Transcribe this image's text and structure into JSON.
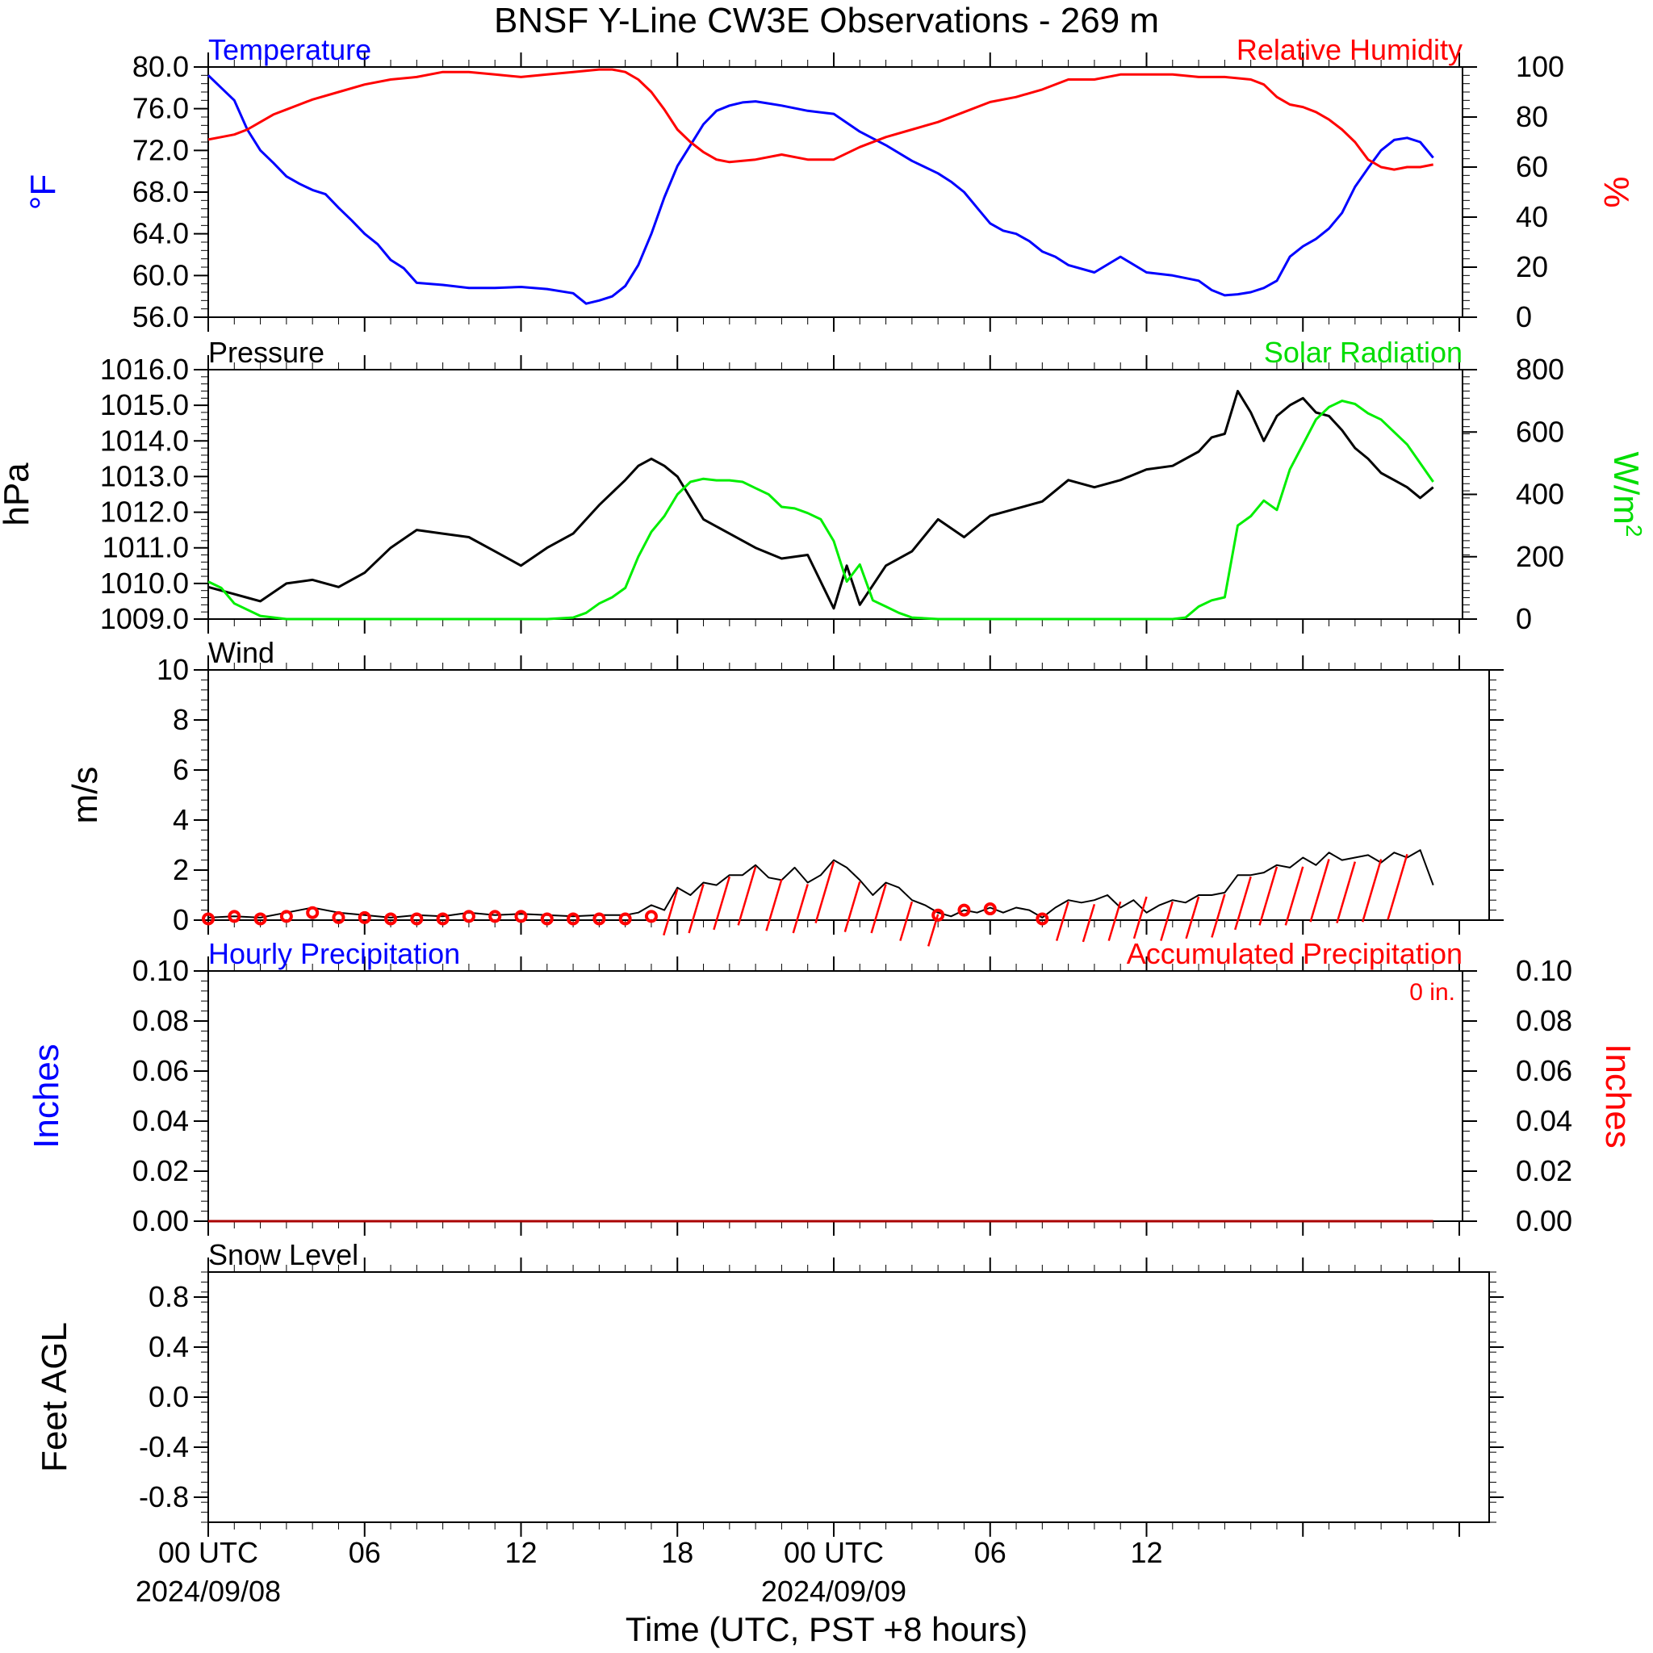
{
  "title": "BNSF Y-Line CW3E Observations - 269 m",
  "x_axis": {
    "label": "Time (UTC, PST +8 hours)",
    "range_hours": [
      0,
      48
    ],
    "ticks": [
      {
        "hour": 0,
        "label": "00 UTC",
        "sublabel": "2024/09/08"
      },
      {
        "hour": 6,
        "label": "06",
        "sublabel": ""
      },
      {
        "hour": 12,
        "label": "12",
        "sublabel": ""
      },
      {
        "hour": 18,
        "label": "18",
        "sublabel": ""
      },
      {
        "hour": 24,
        "label": "00 UTC",
        "sublabel": "2024/09/09"
      },
      {
        "hour": 30,
        "label": "06",
        "sublabel": ""
      },
      {
        "hour": 36,
        "label": "12",
        "sublabel": ""
      }
    ]
  },
  "chart_data": [
    {
      "type": "line",
      "panel": "temperature-humidity",
      "title_left": "Temperature",
      "title_right": "Relative Humidity",
      "ylabel_left": "°F",
      "ylabel_right": "%",
      "ylim_left": [
        56,
        80
      ],
      "ylim_right": [
        0,
        100
      ],
      "yticks_left": [
        "56.0",
        "60.0",
        "64.0",
        "68.0",
        "72.0",
        "76.0",
        "80.0"
      ],
      "yticks_right": [
        "0",
        "20",
        "40",
        "60",
        "80",
        "100"
      ],
      "colors": {
        "temperature": "#0000ff",
        "humidity": "#ff0000"
      },
      "series": [
        {
          "name": "Temperature",
          "axis": "left",
          "x": [
            0,
            0.5,
            1,
            1.5,
            2,
            2.5,
            3,
            3.5,
            4,
            4.5,
            5,
            5.5,
            6,
            6.5,
            7,
            7.5,
            8,
            9,
            10,
            11,
            12,
            13,
            14,
            14.5,
            15,
            15.5,
            16,
            16.5,
            17,
            17.5,
            18,
            18.5,
            19,
            19.5,
            20,
            20.5,
            21,
            22,
            23,
            24,
            25,
            26,
            27,
            28,
            28.5,
            29,
            29.5,
            30,
            30.5,
            31,
            31.5,
            32,
            32.5,
            33,
            34,
            35,
            36,
            37,
            38,
            38.5,
            39,
            39.5,
            40,
            40.5,
            41,
            41.5,
            42,
            42.5,
            43,
            43.5,
            44,
            44.5,
            45,
            45.5,
            46,
            46.5,
            47
          ],
          "y": [
            79.2,
            78,
            76.8,
            74,
            72,
            70.8,
            69.5,
            68.8,
            68.2,
            67.8,
            66.5,
            65.3,
            64,
            63,
            61.5,
            60.7,
            59.3,
            59.1,
            58.8,
            58.8,
            58.9,
            58.7,
            58.3,
            57.3,
            57.6,
            58,
            59,
            61,
            64,
            67.5,
            70.5,
            72.5,
            74.5,
            75.8,
            76.3,
            76.6,
            76.7,
            76.3,
            75.8,
            75.5,
            73.8,
            72.5,
            71,
            69.8,
            69,
            68,
            66.5,
            65,
            64.3,
            64,
            63.3,
            62.3,
            61.8,
            61,
            60.3,
            61.8,
            60.3,
            60,
            59.5,
            58.6,
            58.1,
            58.2,
            58.4,
            58.8,
            59.5,
            61.8,
            62.8,
            63.5,
            64.5,
            66,
            68.5,
            70.3,
            72,
            73,
            73.2,
            72.8,
            71.3
          ]
        },
        {
          "name": "Relative Humidity",
          "axis": "right",
          "x": [
            0,
            0.5,
            1,
            1.5,
            2,
            2.5,
            3,
            3.5,
            4,
            5,
            6,
            7,
            8,
            9,
            10,
            11,
            12,
            13,
            14,
            15,
            15.5,
            16,
            16.5,
            17,
            17.5,
            18,
            18.5,
            19,
            19.5,
            20,
            21,
            22,
            23,
            24,
            25,
            26,
            27,
            28,
            29,
            30,
            31,
            32,
            33,
            34,
            35,
            36,
            37,
            38,
            39,
            40,
            40.5,
            41,
            41.5,
            42,
            42.5,
            43,
            43.5,
            44,
            44.5,
            45,
            45.5,
            46,
            46.5,
            47
          ],
          "y": [
            71,
            72,
            73,
            75,
            78,
            81,
            83,
            85,
            87,
            90,
            93,
            95,
            96,
            98,
            98,
            97,
            96,
            97,
            98,
            99,
            99,
            98,
            95,
            90,
            83,
            75,
            70,
            66,
            63,
            62,
            63,
            65,
            63,
            63,
            68,
            72,
            75,
            78,
            82,
            86,
            88,
            91,
            95,
            95,
            97,
            97,
            97,
            96,
            96,
            95,
            93,
            88,
            85,
            84,
            82,
            79,
            75,
            70,
            63,
            60,
            59,
            60,
            60,
            61
          ]
        }
      ]
    },
    {
      "type": "line",
      "panel": "pressure-solar",
      "title_left": "Pressure",
      "title_right": "Solar Radiation",
      "ylabel_left": "hPa",
      "ylabel_right": "W/m",
      "ylabel_right_sup": "2",
      "ylim_left": [
        1009,
        1016
      ],
      "ylim_right": [
        0,
        800
      ],
      "yticks_left": [
        "1009.0",
        "1010.0",
        "1011.0",
        "1012.0",
        "1013.0",
        "1014.0",
        "1015.0",
        "1016.0"
      ],
      "yticks_right": [
        "0",
        "200",
        "400",
        "600",
        "800"
      ],
      "colors": {
        "pressure": "#000000",
        "solar": "#00ee00"
      },
      "series": [
        {
          "name": "Pressure",
          "axis": "left",
          "x": [
            0,
            0.5,
            1,
            1.5,
            2,
            3,
            4,
            5,
            6,
            7,
            8,
            9,
            10,
            11,
            12,
            13,
            14,
            15,
            16,
            16.5,
            17,
            17.5,
            18,
            19,
            20,
            21,
            22,
            23,
            24,
            24.5,
            25,
            26,
            27,
            28,
            29,
            30,
            31,
            32,
            33,
            34,
            35,
            36,
            37,
            38,
            38.5,
            39,
            39.5,
            40,
            40.5,
            41,
            41.5,
            42,
            42.5,
            43,
            43.5,
            44,
            44.5,
            45,
            45.5,
            46,
            46.5,
            47
          ],
          "y": [
            1009.9,
            1009.8,
            1009.7,
            1009.6,
            1009.5,
            1010,
            1010.1,
            1009.9,
            1010.3,
            1011,
            1011.5,
            1011.4,
            1011.3,
            1010.9,
            1010.5,
            1011,
            1011.4,
            1012.2,
            1012.9,
            1013.3,
            1013.5,
            1013.3,
            1013,
            1011.8,
            1011.4,
            1011,
            1010.7,
            1010.8,
            1009.3,
            1010.5,
            1009.4,
            1010.5,
            1010.9,
            1011.8,
            1011.3,
            1011.9,
            1012.1,
            1012.3,
            1012.9,
            1012.7,
            1012.9,
            1013.2,
            1013.3,
            1013.7,
            1014.1,
            1014.2,
            1015.4,
            1014.8,
            1014,
            1014.7,
            1015,
            1015.2,
            1014.8,
            1014.7,
            1014.3,
            1013.8,
            1013.5,
            1013.1,
            1012.9,
            1012.7,
            1012.4,
            1012.7
          ]
        },
        {
          "name": "Solar Radiation",
          "axis": "right",
          "x": [
            0,
            0.5,
            1,
            2,
            3,
            4,
            6,
            8,
            10,
            12,
            13,
            14,
            14.5,
            15,
            15.5,
            16,
            16.5,
            17,
            17.5,
            18,
            18.5,
            19,
            19.5,
            20,
            20.5,
            21,
            21.5,
            22,
            22.5,
            23,
            23.5,
            24,
            24.5,
            25,
            25.5,
            26,
            26.5,
            27,
            28,
            30,
            32,
            34,
            36,
            37,
            37.5,
            38,
            38.5,
            39,
            39.5,
            40,
            40.5,
            41,
            41.5,
            42,
            42.5,
            43,
            43.5,
            44,
            44.5,
            45,
            45.5,
            46,
            46.5,
            47
          ],
          "y": [
            120,
            100,
            50,
            10,
            0,
            0,
            0,
            0,
            0,
            0,
            0,
            5,
            20,
            50,
            70,
            100,
            200,
            280,
            330,
            400,
            440,
            450,
            445,
            445,
            440,
            420,
            400,
            360,
            355,
            340,
            320,
            250,
            120,
            175,
            60,
            40,
            20,
            5,
            0,
            0,
            0,
            0,
            0,
            0,
            5,
            40,
            60,
            70,
            300,
            330,
            380,
            350,
            480,
            560,
            640,
            680,
            700,
            690,
            660,
            640,
            600,
            560,
            500,
            440
          ]
        }
      ]
    },
    {
      "type": "line",
      "panel": "wind",
      "title_left": "Wind",
      "ylabel_left": "m/s",
      "ylim_left": [
        0,
        10
      ],
      "yticks_left": [
        "0",
        "2",
        "4",
        "6",
        "8",
        "10"
      ],
      "colors": {
        "speed": "#000000",
        "barbs": "#ff0000"
      },
      "series": [
        {
          "name": "Wind Speed",
          "axis": "left",
          "x": [
            0,
            1,
            2,
            3,
            4,
            5,
            6,
            7,
            8,
            9,
            10,
            11,
            12,
            13,
            14,
            15,
            16,
            16.5,
            17,
            17.5,
            18,
            18.5,
            19,
            19.5,
            20,
            20.5,
            21,
            21.5,
            22,
            22.5,
            23,
            23.5,
            24,
            24.5,
            25,
            25.5,
            26,
            26.5,
            27,
            27.5,
            28,
            28.5,
            29,
            29.5,
            30,
            30.5,
            31,
            31.5,
            32,
            32.5,
            33,
            33.5,
            34,
            34.5,
            35,
            35.5,
            36,
            36.5,
            37,
            37.5,
            38,
            38.5,
            39,
            39.5,
            40,
            40.5,
            41,
            41.5,
            42,
            42.5,
            43,
            43.5,
            44,
            44.5,
            45,
            45.5,
            46,
            46.5,
            47
          ],
          "y": [
            0.1,
            0.15,
            0.1,
            0.3,
            0.5,
            0.3,
            0.2,
            0.1,
            0.2,
            0.15,
            0.3,
            0.2,
            0.25,
            0.2,
            0.15,
            0.2,
            0.2,
            0.3,
            0.6,
            0.4,
            1.3,
            1,
            1.5,
            1.4,
            1.8,
            1.8,
            2.2,
            1.7,
            1.6,
            2.1,
            1.5,
            1.8,
            2.4,
            2.1,
            1.6,
            1,
            1.5,
            1.3,
            0.8,
            0.6,
            0.3,
            0.15,
            0.4,
            0.3,
            0.5,
            0.3,
            0.5,
            0.4,
            0.1,
            0.5,
            0.8,
            0.7,
            0.8,
            1,
            0.5,
            0.8,
            0.3,
            0.6,
            0.8,
            0.7,
            1,
            1,
            1.1,
            1.8,
            1.8,
            1.9,
            2.2,
            2.1,
            2.5,
            2.2,
            2.7,
            2.4,
            2.5,
            2.6,
            2.3,
            2.7,
            2.5,
            2.8,
            1.4
          ]
        },
        {
          "name": "Wind Barbs",
          "axis": "left",
          "x": [
            18,
            19,
            20,
            21,
            22,
            23,
            24,
            25,
            26,
            27,
            28,
            33,
            34,
            35,
            36,
            37,
            38,
            39,
            40,
            41,
            42,
            43,
            44,
            45,
            46
          ],
          "y": [
            1.3,
            1.5,
            1.8,
            2.2,
            1.7,
            1.5,
            2.4,
            1.6,
            1.5,
            0.8,
            0.3,
            0.8,
            0.7,
            0.8,
            1,
            0.8,
            1,
            1.1,
            1.8,
            2.2,
            2.2,
            2.5,
            2.4,
            2.5,
            2.7
          ]
        },
        {
          "name": "Calm",
          "axis": "left",
          "x": [
            0,
            1,
            2,
            3,
            4,
            5,
            6,
            7,
            8,
            9,
            10,
            11,
            12,
            13,
            14,
            15,
            16,
            17,
            28,
            29,
            30,
            32
          ],
          "y": [
            0.05,
            0.15,
            0.05,
            0.15,
            0.3,
            0.1,
            0.1,
            0.05,
            0.05,
            0.05,
            0.15,
            0.15,
            0.15,
            0.05,
            0.05,
            0.05,
            0.05,
            0.15,
            0.2,
            0.4,
            0.45,
            0.05
          ]
        }
      ]
    },
    {
      "type": "line",
      "panel": "precipitation",
      "title_left": "Hourly Precipitation",
      "title_right": "Accumulated Precipitation",
      "annotation": "0 in.",
      "ylabel_left": "Inches",
      "ylabel_right": "Inches",
      "ylim_left": [
        0,
        0.1
      ],
      "ylim_right": [
        0,
        0.1
      ],
      "yticks_left": [
        "0.00",
        "0.02",
        "0.04",
        "0.06",
        "0.08",
        "0.10"
      ],
      "yticks_right": [
        "0.00",
        "0.02",
        "0.04",
        "0.06",
        "0.08",
        "0.10"
      ],
      "colors": {
        "hourly": "#0000ff",
        "accumulated": "#aa0000"
      },
      "series": [
        {
          "name": "Accumulated Precipitation",
          "axis": "left",
          "x": [
            0,
            47
          ],
          "y": [
            0,
            0
          ]
        }
      ]
    },
    {
      "type": "line",
      "panel": "snow-level",
      "title_left": "Snow Level",
      "ylabel_left": "Feet AGL",
      "ylim_left": [
        -1,
        1
      ],
      "yticks_left": [
        "-0.8",
        "-0.4",
        "0.0",
        "0.4",
        "0.8"
      ],
      "series": []
    }
  ]
}
